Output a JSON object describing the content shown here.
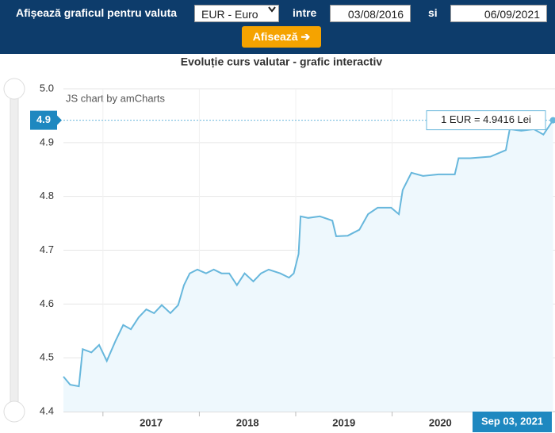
{
  "form": {
    "currency_label": "Afișează graficul pentru valuta",
    "currency": "EUR - Euro",
    "between_label": "intre",
    "date_from": "03/08/2016",
    "and_label": "si",
    "date_to": "06/09/2021",
    "button": "Afisează ➔"
  },
  "chart_data": {
    "type": "area",
    "title": "Evoluție curs valutar - grafic interactiv",
    "credit": "JS chart by amCharts",
    "color": "#67b7dc",
    "fill": "#eef8fd",
    "grid": true,
    "x": [
      2016.59,
      2016.66,
      2016.75,
      2016.79,
      2016.88,
      2016.96,
      2017.04,
      2017.13,
      2017.21,
      2017.29,
      2017.37,
      2017.45,
      2017.53,
      2017.61,
      2017.7,
      2017.78,
      2017.84,
      2017.9,
      2017.98,
      2018.07,
      2018.15,
      2018.23,
      2018.31,
      2018.39,
      2018.47,
      2018.56,
      2018.64,
      2018.72,
      2018.84,
      2018.93,
      2018.98,
      2019.03,
      2019.05,
      2019.13,
      2019.25,
      2019.38,
      2019.42,
      2019.54,
      2019.66,
      2019.75,
      2019.85,
      2019.99,
      2020.07,
      2020.11,
      2020.2,
      2020.32,
      2020.48,
      2020.65,
      2020.69,
      2020.81,
      2021.02,
      2021.18,
      2021.22,
      2021.34,
      2021.47,
      2021.57,
      2021.67
    ],
    "values": [
      4.465,
      4.45,
      4.447,
      4.516,
      4.51,
      4.524,
      4.494,
      4.531,
      4.561,
      4.553,
      4.575,
      4.59,
      4.583,
      4.598,
      4.583,
      4.598,
      4.635,
      4.657,
      4.664,
      4.657,
      4.664,
      4.657,
      4.657,
      4.635,
      4.657,
      4.642,
      4.657,
      4.664,
      4.657,
      4.649,
      4.657,
      4.693,
      4.763,
      4.76,
      4.763,
      4.755,
      4.726,
      4.727,
      4.738,
      4.767,
      4.779,
      4.779,
      4.767,
      4.812,
      4.844,
      4.838,
      4.841,
      4.841,
      4.871,
      4.871,
      4.874,
      4.886,
      4.925,
      4.922,
      4.925,
      4.915,
      4.9416
    ],
    "xlim": [
      2016.59,
      2021.69
    ],
    "xticks": [
      2017,
      2018,
      2019,
      2020
    ],
    "ylim": [
      4.4,
      5.0
    ],
    "yticks": [
      4.4,
      4.5,
      4.6,
      4.7,
      4.8,
      4.9,
      {
        "value": 5,
        "label": "5.0"
      }
    ],
    "cursor_y_label": "4.9",
    "tooltip": "1 EUR = 4.9416 Lei",
    "cursor_x_label": "Sep 03, 2021"
  }
}
